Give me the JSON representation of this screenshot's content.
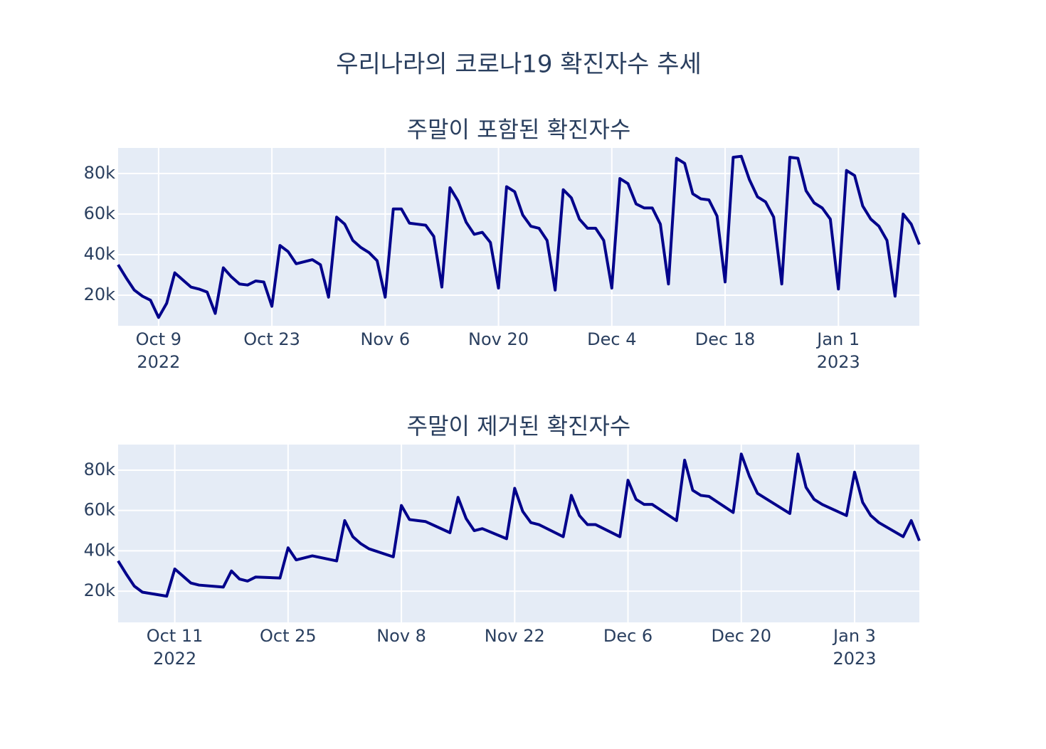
{
  "title": "우리나라의 코로나19 확진자수 추세",
  "chart_data": [
    {
      "type": "line",
      "title": "주말이 포함된 확진자수",
      "x": [
        "2022-10-04",
        "2022-10-05",
        "2022-10-06",
        "2022-10-07",
        "2022-10-08",
        "2022-10-09",
        "2022-10-10",
        "2022-10-11",
        "2022-10-12",
        "2022-10-13",
        "2022-10-14",
        "2022-10-15",
        "2022-10-16",
        "2022-10-17",
        "2022-10-18",
        "2022-10-19",
        "2022-10-20",
        "2022-10-21",
        "2022-10-22",
        "2022-10-23",
        "2022-10-24",
        "2022-10-25",
        "2022-10-26",
        "2022-10-27",
        "2022-10-28",
        "2022-10-29",
        "2022-10-30",
        "2022-10-31",
        "2022-11-01",
        "2022-11-02",
        "2022-11-03",
        "2022-11-04",
        "2022-11-05",
        "2022-11-06",
        "2022-11-07",
        "2022-11-08",
        "2022-11-09",
        "2022-11-10",
        "2022-11-11",
        "2022-11-12",
        "2022-11-13",
        "2022-11-14",
        "2022-11-15",
        "2022-11-16",
        "2022-11-17",
        "2022-11-18",
        "2022-11-19",
        "2022-11-20",
        "2022-11-21",
        "2022-11-22",
        "2022-11-23",
        "2022-11-24",
        "2022-11-25",
        "2022-11-26",
        "2022-11-27",
        "2022-11-28",
        "2022-11-29",
        "2022-11-30",
        "2022-12-01",
        "2022-12-02",
        "2022-12-03",
        "2022-12-04",
        "2022-12-05",
        "2022-12-06",
        "2022-12-07",
        "2022-12-08",
        "2022-12-09",
        "2022-12-10",
        "2022-12-11",
        "2022-12-12",
        "2022-12-13",
        "2022-12-14",
        "2022-12-15",
        "2022-12-16",
        "2022-12-17",
        "2022-12-18",
        "2022-12-19",
        "2022-12-20",
        "2022-12-21",
        "2022-12-22",
        "2022-12-23",
        "2022-12-24",
        "2022-12-25",
        "2022-12-26",
        "2022-12-27",
        "2022-12-28",
        "2022-12-29",
        "2022-12-30",
        "2022-12-31",
        "2023-01-01",
        "2023-01-02",
        "2023-01-03",
        "2023-01-04",
        "2023-01-05",
        "2023-01-06",
        "2023-01-07",
        "2023-01-08",
        "2023-01-09",
        "2023-01-10",
        "2023-01-11"
      ],
      "series": [
        {
          "color": "#00008b",
          "values": [
            35000,
            28500,
            22500,
            19500,
            17500,
            9000,
            16000,
            31000,
            27500,
            24000,
            23000,
            21500,
            11000,
            33500,
            29000,
            25500,
            25000,
            27000,
            26500,
            14500,
            44500,
            41500,
            35500,
            36500,
            37500,
            35000,
            19000,
            58500,
            55000,
            47000,
            43500,
            41000,
            37000,
            19000,
            62500,
            62500,
            55500,
            55000,
            54500,
            49000,
            24000,
            73000,
            66500,
            56000,
            50000,
            51000,
            46000,
            23500,
            73500,
            71000,
            59500,
            54000,
            53000,
            47000,
            22500,
            72000,
            68000,
            57500,
            53000,
            53000,
            47000,
            23500,
            77500,
            75000,
            65000,
            63000,
            63000,
            55000,
            25500,
            87500,
            85000,
            70000,
            67500,
            67000,
            59000,
            26500,
            88000,
            88500,
            77000,
            68500,
            66000,
            58500,
            25500,
            88000,
            87500,
            71500,
            65500,
            63000,
            57500,
            23000,
            81500,
            79000,
            64000,
            57500,
            54000,
            47000,
            19500,
            60000,
            55000,
            45000
          ]
        }
      ],
      "xlim": [
        "2022-10-04",
        "2023-01-11"
      ],
      "xticks": [
        {
          "value": "2022-10-09",
          "label": "Oct 9",
          "year": "2022"
        },
        {
          "value": "2022-10-23",
          "label": "Oct 23"
        },
        {
          "value": "2022-11-06",
          "label": "Nov 6"
        },
        {
          "value": "2022-11-20",
          "label": "Nov 20"
        },
        {
          "value": "2022-12-04",
          "label": "Dec 4"
        },
        {
          "value": "2022-12-18",
          "label": "Dec 18"
        },
        {
          "value": "2023-01-01",
          "label": "Jan 1",
          "year": "2023"
        }
      ],
      "ylim": [
        4900,
        92600
      ],
      "yticks": [
        {
          "value": 20000,
          "label": "20k"
        },
        {
          "value": 40000,
          "label": "40k"
        },
        {
          "value": 60000,
          "label": "60k"
        },
        {
          "value": 80000,
          "label": "80k"
        }
      ],
      "grid": true
    },
    {
      "type": "line",
      "title": "주말이 제거된 확진자수",
      "x": [
        "2022-10-04",
        "2022-10-05",
        "2022-10-06",
        "2022-10-07",
        "2022-10-10",
        "2022-10-11",
        "2022-10-12",
        "2022-10-13",
        "2022-10-14",
        "2022-10-17",
        "2022-10-18",
        "2022-10-19",
        "2022-10-20",
        "2022-10-21",
        "2022-10-24",
        "2022-10-25",
        "2022-10-26",
        "2022-10-27",
        "2022-10-28",
        "2022-10-31",
        "2022-11-01",
        "2022-11-02",
        "2022-11-03",
        "2022-11-04",
        "2022-11-07",
        "2022-11-08",
        "2022-11-09",
        "2022-11-10",
        "2022-11-11",
        "2022-11-14",
        "2022-11-15",
        "2022-11-16",
        "2022-11-17",
        "2022-11-18",
        "2022-11-21",
        "2022-11-22",
        "2022-11-23",
        "2022-11-24",
        "2022-11-25",
        "2022-11-28",
        "2022-11-29",
        "2022-11-30",
        "2022-12-01",
        "2022-12-02",
        "2022-12-05",
        "2022-12-06",
        "2022-12-07",
        "2022-12-08",
        "2022-12-09",
        "2022-12-12",
        "2022-12-13",
        "2022-12-14",
        "2022-12-15",
        "2022-12-16",
        "2022-12-19",
        "2022-12-20",
        "2022-12-21",
        "2022-12-22",
        "2022-12-23",
        "2022-12-26",
        "2022-12-27",
        "2022-12-28",
        "2022-12-29",
        "2022-12-30",
        "2023-01-02",
        "2023-01-03",
        "2023-01-04",
        "2023-01-05",
        "2023-01-06",
        "2023-01-09",
        "2023-01-10",
        "2023-01-11"
      ],
      "series": [
        {
          "color": "#00008b",
          "values": [
            35000,
            28500,
            22500,
            19500,
            17500,
            31000,
            27500,
            24000,
            23000,
            22000,
            30000,
            26000,
            25000,
            27000,
            26500,
            41500,
            35500,
            36500,
            37500,
            35000,
            55000,
            47000,
            43500,
            41000,
            37000,
            62500,
            55500,
            55000,
            54500,
            49000,
            66500,
            56000,
            50000,
            51000,
            46000,
            71000,
            59500,
            54000,
            53000,
            47000,
            67500,
            57500,
            53000,
            53000,
            47000,
            75000,
            65500,
            63000,
            63000,
            55000,
            85000,
            70000,
            67500,
            67000,
            59000,
            88000,
            77000,
            68500,
            66000,
            58500,
            88000,
            71500,
            65500,
            63000,
            57500,
            79000,
            64000,
            57500,
            54000,
            47000,
            55000,
            45000
          ]
        }
      ],
      "xlim": [
        "2022-10-04",
        "2023-01-11"
      ],
      "xticks": [
        {
          "value": "2022-10-11",
          "label": "Oct 11",
          "year": "2022"
        },
        {
          "value": "2022-10-25",
          "label": "Oct 25"
        },
        {
          "value": "2022-11-08",
          "label": "Nov 8"
        },
        {
          "value": "2022-11-22",
          "label": "Nov 22"
        },
        {
          "value": "2022-12-06",
          "label": "Dec 6"
        },
        {
          "value": "2022-12-20",
          "label": "Dec 20"
        },
        {
          "value": "2023-01-03",
          "label": "Jan 3",
          "year": "2023"
        }
      ],
      "ylim": [
        4500,
        92700
      ],
      "yticks": [
        {
          "value": 20000,
          "label": "20k"
        },
        {
          "value": 40000,
          "label": "40k"
        },
        {
          "value": 60000,
          "label": "60k"
        },
        {
          "value": 80000,
          "label": "80k"
        }
      ],
      "grid": true
    }
  ]
}
